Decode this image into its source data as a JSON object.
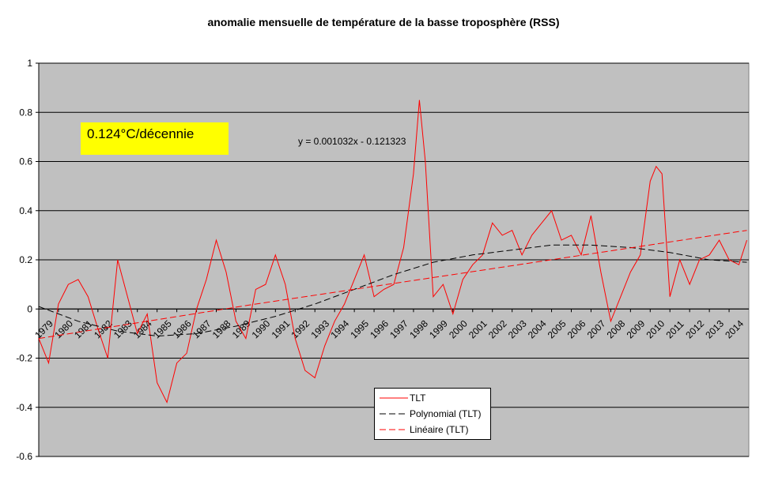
{
  "chart_data": {
    "type": "line",
    "title": "anomalie mensuelle de température de la basse troposphère (RSS)",
    "xlabel": "",
    "ylabel": "",
    "ylim": [
      -0.6,
      1.0
    ],
    "yticks": [
      "1",
      "0.8",
      "0.6",
      "0.4",
      "0.2",
      "0",
      "-0.2",
      "-0.4",
      "-0.6"
    ],
    "xticks": [
      "1979",
      "1980",
      "1981",
      "1982",
      "1983",
      "1984",
      "1985",
      "1986",
      "1987",
      "1988",
      "1989",
      "1990",
      "1991",
      "1992",
      "1993",
      "1994",
      "1995",
      "1996",
      "1997",
      "1998",
      "1999",
      "2000",
      "2001",
      "2002",
      "2003",
      "2004",
      "2005",
      "2006",
      "2007",
      "2008",
      "2009",
      "2010",
      "2011",
      "2012",
      "2013",
      "2014"
    ],
    "grid": true,
    "legend_position": "bottom-center",
    "background": "#c0c0c0",
    "annotation": "0.124°C/décennie",
    "equation": "y = 0.001032x - 0.121323",
    "series": [
      {
        "name": "TLT",
        "style": "solid",
        "color": "#ff0000",
        "x": [
          1979.0,
          1979.5,
          1980.0,
          1980.5,
          1981.0,
          1981.5,
          1982.0,
          1982.5,
          1983.0,
          1983.5,
          1984.0,
          1984.5,
          1985.0,
          1985.5,
          1986.0,
          1986.5,
          1987.0,
          1987.5,
          1988.0,
          1988.5,
          1989.0,
          1989.5,
          1990.0,
          1990.5,
          1991.0,
          1991.5,
          1992.0,
          1992.5,
          1993.0,
          1993.5,
          1994.0,
          1994.5,
          1995.0,
          1995.5,
          1996.0,
          1996.5,
          1997.0,
          1997.5,
          1998.0,
          1998.3,
          1998.6,
          1999.0,
          1999.5,
          2000.0,
          2000.5,
          2001.0,
          2001.5,
          2002.0,
          2002.5,
          2003.0,
          2003.5,
          2004.0,
          2004.5,
          2005.0,
          2005.5,
          2006.0,
          2006.5,
          2007.0,
          2007.5,
          2008.0,
          2008.5,
          2009.0,
          2009.5,
          2010.0,
          2010.3,
          2010.6,
          2011.0,
          2011.5,
          2012.0,
          2012.5,
          2013.0,
          2013.5,
          2014.0,
          2014.5,
          2014.9
        ],
        "values": [
          -0.12,
          -0.22,
          0.02,
          0.1,
          0.12,
          0.05,
          -0.08,
          -0.2,
          0.2,
          0.05,
          -0.1,
          -0.02,
          -0.3,
          -0.38,
          -0.22,
          -0.18,
          0.0,
          0.12,
          0.28,
          0.15,
          -0.05,
          -0.12,
          0.08,
          0.1,
          0.22,
          0.1,
          -0.12,
          -0.25,
          -0.28,
          -0.15,
          -0.05,
          0.02,
          0.12,
          0.22,
          0.05,
          0.08,
          0.1,
          0.25,
          0.55,
          0.85,
          0.6,
          0.05,
          0.1,
          -0.02,
          0.12,
          0.18,
          0.22,
          0.35,
          0.3,
          0.32,
          0.22,
          0.3,
          0.35,
          0.4,
          0.28,
          0.3,
          0.22,
          0.38,
          0.15,
          -0.05,
          0.05,
          0.15,
          0.22,
          0.52,
          0.58,
          0.55,
          0.05,
          0.2,
          0.1,
          0.2,
          0.22,
          0.28,
          0.2,
          0.18,
          0.28
        ]
      },
      {
        "name": "Polynomial (TLT)",
        "style": "dashed",
        "color": "#000000",
        "x": [
          1979.0,
          1981.0,
          1983.0,
          1985.0,
          1987.0,
          1989.0,
          1991.0,
          1993.0,
          1995.0,
          1997.0,
          1999.0,
          2001.0,
          2003.0,
          2005.0,
          2007.0,
          2009.0,
          2011.0,
          2013.0,
          2014.9
        ],
        "values": [
          0.01,
          -0.05,
          -0.09,
          -0.11,
          -0.1,
          -0.07,
          -0.03,
          0.02,
          0.08,
          0.14,
          0.19,
          0.22,
          0.24,
          0.26,
          0.26,
          0.25,
          0.23,
          0.2,
          0.19
        ]
      },
      {
        "name": "Linéaire (TLT)",
        "style": "dashed",
        "color": "#ff0000",
        "x": [
          1979.0,
          1990.0,
          2000.0,
          2014.9
        ],
        "values": [
          -0.12,
          0.02,
          0.14,
          0.32
        ]
      }
    ]
  }
}
